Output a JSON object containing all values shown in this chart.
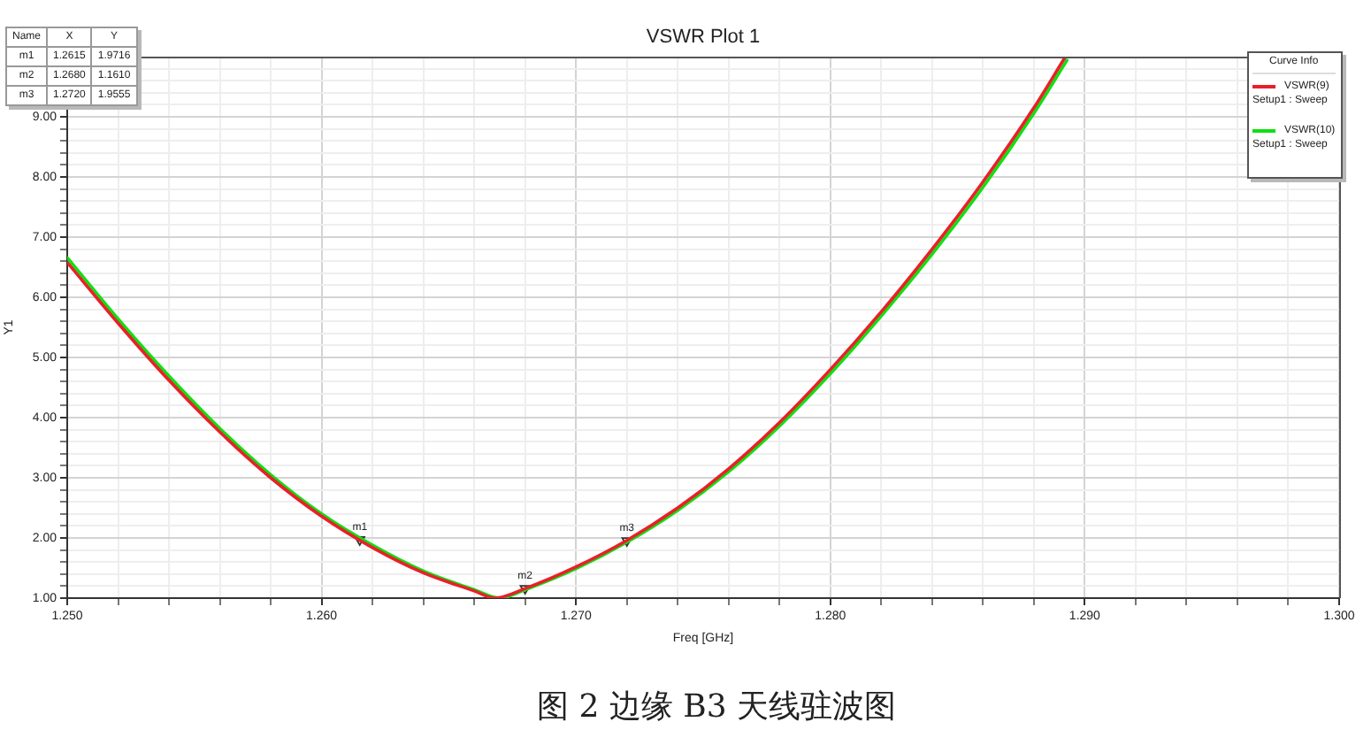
{
  "chart_data": {
    "type": "line",
    "title": "VSWR Plot 1",
    "xlabel": "Freq [GHz]",
    "ylabel": "Y1",
    "legend_title": "Curve Info",
    "legend": "top right",
    "grid": true,
    "xlim": [
      1.25,
      1.3
    ],
    "xticks": [
      {
        "value": 1.25,
        "label": "1.250"
      },
      {
        "value": 1.252,
        "label": null
      },
      {
        "value": 1.254,
        "label": null
      },
      {
        "value": 1.256,
        "label": null
      },
      {
        "value": 1.258,
        "label": null
      },
      {
        "value": 1.26,
        "label": "1.260"
      },
      {
        "value": 1.262,
        "label": null
      },
      {
        "value": 1.264,
        "label": null
      },
      {
        "value": 1.266,
        "label": null
      },
      {
        "value": 1.268,
        "label": null
      },
      {
        "value": 1.27,
        "label": "1.270"
      },
      {
        "value": 1.272,
        "label": null
      },
      {
        "value": 1.274,
        "label": null
      },
      {
        "value": 1.276,
        "label": null
      },
      {
        "value": 1.278,
        "label": null
      },
      {
        "value": 1.28,
        "label": "1.280"
      },
      {
        "value": 1.282,
        "label": null
      },
      {
        "value": 1.284,
        "label": null
      },
      {
        "value": 1.286,
        "label": null
      },
      {
        "value": 1.288,
        "label": null
      },
      {
        "value": 1.29,
        "label": "1.290"
      },
      {
        "value": 1.292,
        "label": null
      },
      {
        "value": 1.294,
        "label": null
      },
      {
        "value": 1.296,
        "label": null
      },
      {
        "value": 1.298,
        "label": null
      },
      {
        "value": 1.3,
        "label": "1.300"
      }
    ],
    "ylim": [
      1,
      10
    ],
    "yticks": [
      {
        "value": 1,
        "label": "1.00"
      },
      {
        "value": 1.2,
        "label": null
      },
      {
        "value": 1.4,
        "label": null
      },
      {
        "value": 1.6,
        "label": null
      },
      {
        "value": 1.8,
        "label": null
      },
      {
        "value": 2,
        "label": "2.00"
      },
      {
        "value": 2.2,
        "label": null
      },
      {
        "value": 2.4,
        "label": null
      },
      {
        "value": 2.6,
        "label": null
      },
      {
        "value": 2.8,
        "label": null
      },
      {
        "value": 3,
        "label": "3.00"
      },
      {
        "value": 3.2,
        "label": null
      },
      {
        "value": 3.4,
        "label": null
      },
      {
        "value": 3.6,
        "label": null
      },
      {
        "value": 3.8,
        "label": null
      },
      {
        "value": 4,
        "label": "4.00"
      },
      {
        "value": 4.2,
        "label": null
      },
      {
        "value": 4.4,
        "label": null
      },
      {
        "value": 4.6,
        "label": null
      },
      {
        "value": 4.8,
        "label": null
      },
      {
        "value": 5,
        "label": "5.00"
      },
      {
        "value": 5.2,
        "label": null
      },
      {
        "value": 5.4,
        "label": null
      },
      {
        "value": 5.6,
        "label": null
      },
      {
        "value": 5.8,
        "label": null
      },
      {
        "value": 6,
        "label": "6.00"
      },
      {
        "value": 6.2,
        "label": null
      },
      {
        "value": 6.4,
        "label": null
      },
      {
        "value": 6.6,
        "label": null
      },
      {
        "value": 6.8,
        "label": null
      },
      {
        "value": 7,
        "label": "7.00"
      },
      {
        "value": 7.2,
        "label": null
      },
      {
        "value": 7.4,
        "label": null
      },
      {
        "value": 7.6,
        "label": null
      },
      {
        "value": 7.8,
        "label": null
      },
      {
        "value": 8,
        "label": "8.00"
      },
      {
        "value": 8.2,
        "label": null
      },
      {
        "value": 8.4,
        "label": null
      },
      {
        "value": 8.6,
        "label": null
      },
      {
        "value": 8.8,
        "label": null
      },
      {
        "value": 9,
        "label": "9.00"
      },
      {
        "value": 9.2,
        "label": null
      },
      {
        "value": 9.4,
        "label": null
      },
      {
        "value": 9.6,
        "label": null
      },
      {
        "value": 9.8,
        "label": null
      }
    ],
    "series": [
      {
        "name": "VSWR(9)",
        "color": "#e8202a",
        "x": [
          1.25,
          1.252,
          1.254,
          1.256,
          1.258,
          1.26,
          1.262,
          1.264,
          1.266,
          1.2668,
          1.268,
          1.27,
          1.272,
          1.274,
          1.276,
          1.278,
          1.28,
          1.282,
          1.284,
          1.286,
          1.288,
          1.2892
        ],
        "values": [
          6.58,
          5.57,
          4.62,
          3.76,
          3.0,
          2.36,
          1.84,
          1.42,
          1.12,
          1.0,
          1.16,
          1.52,
          1.96,
          2.5,
          3.15,
          3.92,
          4.8,
          5.76,
          6.8,
          7.92,
          9.15,
          9.97
        ]
      },
      {
        "name": "VSWR(10)",
        "color": "#10e010",
        "x": [
          1.25,
          1.252,
          1.254,
          1.256,
          1.258,
          1.26,
          1.262,
          1.264,
          1.266,
          1.267,
          1.268,
          1.27,
          1.272,
          1.274,
          1.276,
          1.278,
          1.28,
          1.282,
          1.284,
          1.286,
          1.288,
          1.2893
        ],
        "values": [
          6.66,
          5.64,
          4.69,
          3.82,
          3.05,
          2.4,
          1.88,
          1.45,
          1.14,
          1.0,
          1.14,
          1.49,
          1.93,
          2.46,
          3.1,
          3.86,
          4.73,
          5.69,
          6.72,
          7.83,
          9.06,
          9.94
        ]
      },
      {
        "type": "scatter",
        "color": "#333333",
        "marker": "triangle",
        "x": [
          1.2615,
          1.268,
          1.272
        ],
        "values": [
          1.9716,
          1.161,
          1.9555
        ]
      }
    ],
    "annotations": [
      {
        "text": "m1",
        "x": 1.2615,
        "y": 1.9716
      },
      {
        "text": "m2",
        "x": 1.268,
        "y": 1.161
      },
      {
        "text": "m3",
        "x": 1.272,
        "y": 1.9555
      },
      "Name",
      "X",
      "Y",
      "1.2615",
      "1.9716",
      "1.2680",
      "1.1610",
      "1.2720",
      "1.9555",
      "Setup1 : Sweep",
      "Setup1 : Sweep",
      "图 2 边缘 B3 天线驻波图"
    ]
  }
}
